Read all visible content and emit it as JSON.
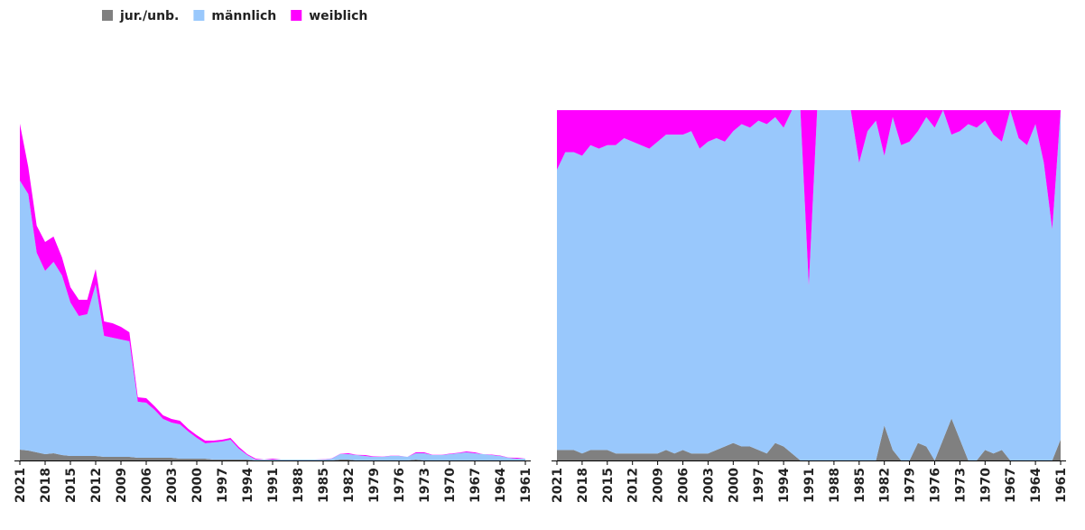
{
  "legend_position": "top-left",
  "chart_data": [
    {
      "type": "stacked-area",
      "categories": [
        "2021",
        null,
        null,
        "2018",
        null,
        null,
        "2015",
        null,
        null,
        "2012",
        null,
        null,
        "2009",
        null,
        null,
        "2006",
        null,
        null,
        "2003",
        null,
        null,
        "2000",
        null,
        null,
        "1997",
        null,
        null,
        "1994",
        null,
        null,
        "1991",
        null,
        null,
        "1988",
        null,
        null,
        "1985",
        null,
        null,
        "1982",
        null,
        null,
        "1979",
        null,
        null,
        "1976",
        null,
        null,
        "1973",
        null,
        null,
        "1970",
        null,
        null,
        "1967",
        null,
        null,
        "1964",
        null,
        null,
        "1961"
      ],
      "ylim": [
        0,
        380
      ],
      "series": [
        {
          "name": "jur./unb.",
          "color": "#808080",
          "values": [
            12,
            11,
            9,
            7,
            8,
            6,
            5,
            5,
            5,
            5,
            4,
            4,
            4,
            4,
            3,
            3,
            3,
            3,
            3,
            2,
            2,
            2,
            2,
            1,
            1,
            1,
            1,
            1,
            0,
            0,
            0,
            0,
            0,
            0,
            0,
            0,
            0,
            0,
            1,
            1,
            0,
            0,
            0,
            0,
            0,
            0,
            0,
            1,
            0,
            0,
            0,
            0,
            0,
            0,
            0,
            0,
            0,
            0,
            0,
            0,
            0
          ]
        },
        {
          "name": "männlich",
          "color": "#99c8fc",
          "values": [
            298,
            284,
            221,
            203,
            212,
            199,
            170,
            155,
            157,
            190,
            134,
            132,
            130,
            128,
            62,
            61,
            53,
            43,
            39,
            38,
            30,
            23,
            17,
            19,
            20,
            22,
            12,
            5,
            1,
            1,
            1,
            1,
            1,
            1,
            1,
            1,
            1,
            2,
            6,
            6,
            6,
            5,
            4,
            4,
            5,
            5,
            4,
            7,
            8,
            6,
            6,
            7,
            8,
            9,
            8,
            7,
            6,
            5,
            3,
            2,
            2
          ]
        },
        {
          "name": "weiblich",
          "color": "#ff00ff",
          "values": [
            63,
            30,
            30,
            32,
            28,
            20,
            17,
            18,
            16,
            17,
            16,
            16,
            14,
            10,
            5,
            5,
            4,
            4,
            4,
            4,
            3,
            3,
            3,
            2,
            2,
            2,
            2,
            1,
            1,
            0,
            1,
            0,
            0,
            0,
            0,
            0,
            0.2,
            0.2,
            0.2,
            1,
            0.2,
            1,
            0.5,
            0.3,
            0.2,
            0.3,
            0,
            1,
            1,
            0.3,
            0.3,
            0.5,
            0.5,
            1,
            1,
            0,
            0.5,
            0.5,
            0.2,
            1,
            0
          ]
        }
      ]
    },
    {
      "type": "percent-area",
      "categories": [
        "2021",
        null,
        null,
        "2018",
        null,
        null,
        "2015",
        null,
        null,
        "2012",
        null,
        null,
        "2009",
        null,
        null,
        "2006",
        null,
        null,
        "2003",
        null,
        null,
        "2000",
        null,
        null,
        "1997",
        null,
        null,
        "1994",
        null,
        null,
        "1991",
        null,
        null,
        "1988",
        null,
        null,
        "1985",
        null,
        null,
        "1982",
        null,
        null,
        "1979",
        null,
        null,
        "1976",
        null,
        null,
        "1973",
        null,
        null,
        "1970",
        null,
        null,
        "1967",
        null,
        null,
        "1964",
        null,
        null,
        "1961"
      ],
      "ylim": [
        0,
        100
      ],
      "series": [
        {
          "color": "#808080",
          "values": [
            3,
            3,
            3,
            2,
            3,
            3,
            3,
            2,
            2,
            2,
            2,
            2,
            2,
            3,
            2,
            3,
            2,
            2,
            2,
            3,
            4,
            5,
            4,
            4,
            3,
            2,
            5,
            4,
            2,
            0,
            0,
            0,
            0,
            0,
            0,
            0,
            0,
            0,
            0,
            10,
            3,
            0,
            0,
            5,
            4,
            0,
            6,
            12,
            6,
            0,
            0,
            3,
            2,
            3,
            0,
            0,
            0,
            0,
            0,
            0,
            6
          ]
        },
        {
          "color": "#99c8fc",
          "values": [
            80,
            85,
            85,
            85,
            87,
            86,
            87,
            88,
            90,
            89,
            88,
            87,
            89,
            90,
            91,
            90,
            92,
            87,
            89,
            89,
            87,
            89,
            92,
            91,
            94,
            94,
            93,
            91,
            98,
            100,
            50,
            100,
            100,
            100,
            100,
            100,
            85,
            94,
            97,
            77,
            95,
            90,
            91,
            89,
            94,
            95,
            94,
            81,
            88,
            96,
            95,
            94,
            91,
            88,
            100,
            92,
            90,
            96,
            85,
            66,
            94
          ]
        },
        {
          "color": "#ff00ff",
          "values": [
            17,
            12,
            12,
            13,
            10,
            11,
            10,
            10,
            8,
            9,
            10,
            11,
            9,
            7,
            7,
            7,
            6,
            11,
            9,
            8,
            9,
            6,
            4,
            5,
            3,
            4,
            2,
            5,
            0,
            0,
            50,
            0,
            0,
            0,
            0,
            0,
            15,
            6,
            3,
            13,
            2,
            10,
            9,
            6,
            2,
            5,
            0,
            7,
            6,
            4,
            5,
            3,
            7,
            9,
            0,
            8,
            10,
            4,
            15,
            34,
            0
          ]
        }
      ]
    }
  ]
}
